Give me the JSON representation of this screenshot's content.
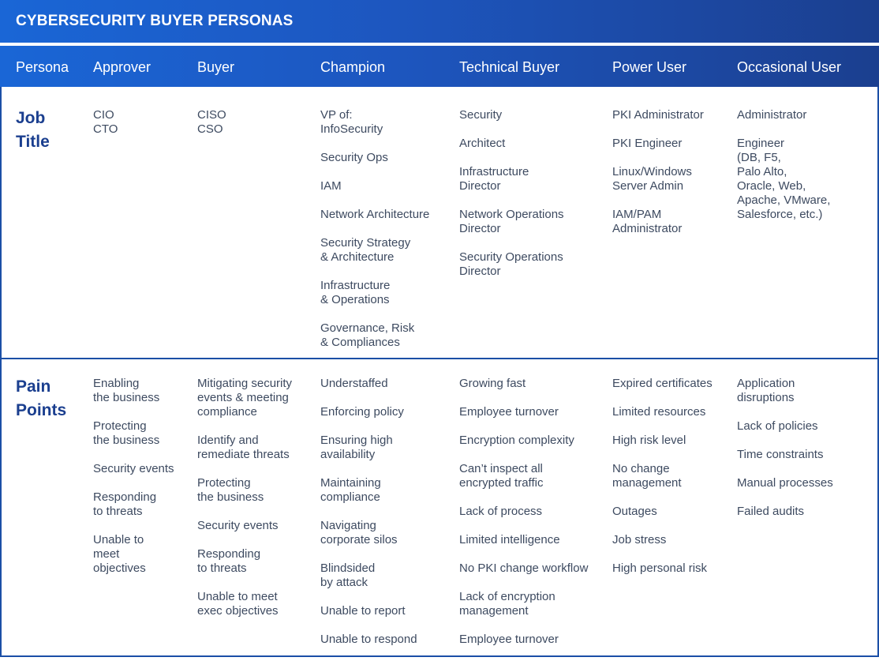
{
  "title": "CYBERSECURITY BUYER PERSONAS",
  "header": {
    "persona": "Persona",
    "columns": [
      "Approver",
      "Buyer",
      "Champion",
      "Technical Buyer",
      "Power User",
      "Occasional User"
    ]
  },
  "rows": {
    "job_title": {
      "label": "Job\nTitle",
      "columns": [
        [
          "CIO\nCTO"
        ],
        [
          "CISO\nCSO"
        ],
        [
          "VP of:\nInfoSecurity",
          "Security Ops",
          "IAM",
          "Network Architecture",
          "Security Strategy\n& Architecture",
          "Infrastructure\n& Operations",
          "Governance, Risk\n& Compliances"
        ],
        [
          "Security",
          "Architect",
          "Infrastructure\nDirector",
          "Network Operations\nDirector",
          "Security Operations\nDirector"
        ],
        [
          "PKI Administrator",
          "PKI Engineer",
          "Linux/Windows\nServer Admin",
          "IAM/PAM\nAdministrator"
        ],
        [
          "Administrator",
          "Engineer\n(DB, F5,\nPalo Alto,\nOracle, Web,\nApache, VMware,\nSalesforce, etc.)"
        ]
      ]
    },
    "pain_points": {
      "label": "Pain\nPoints",
      "columns": [
        [
          "Enabling\nthe business",
          "Protecting\nthe business",
          "Security events",
          "Responding\nto threats",
          "Unable to\nmeet\nobjectives"
        ],
        [
          "Mitigating security\nevents & meeting\ncompliance",
          "Identify and\nremediate threats",
          "Protecting\nthe business",
          "Security events",
          "Responding\nto threats",
          "Unable to meet\nexec objectives"
        ],
        [
          "Understaffed",
          "Enforcing policy",
          "Ensuring high\navailability",
          "Maintaining\ncompliance",
          "Navigating\ncorporate silos",
          "Blindsided\nby attack",
          "Unable to report",
          "Unable to respond"
        ],
        [
          "Growing fast",
          "Employee turnover",
          "Encryption complexity",
          "Can’t inspect all\nencrypted traffic",
          "Lack of process",
          "Limited intelligence",
          "No PKI change workflow",
          "Lack of encryption\nmanagement",
          "Employee turnover"
        ],
        [
          "Expired certificates",
          "Limited resources",
          "High risk level",
          "No change\nmanagement",
          "Outages",
          "Job stress",
          "High personal risk"
        ],
        [
          "Application\ndisruptions",
          "Lack of policies",
          "Time constraints",
          "Manual processes",
          "Failed audits"
        ]
      ]
    }
  }
}
